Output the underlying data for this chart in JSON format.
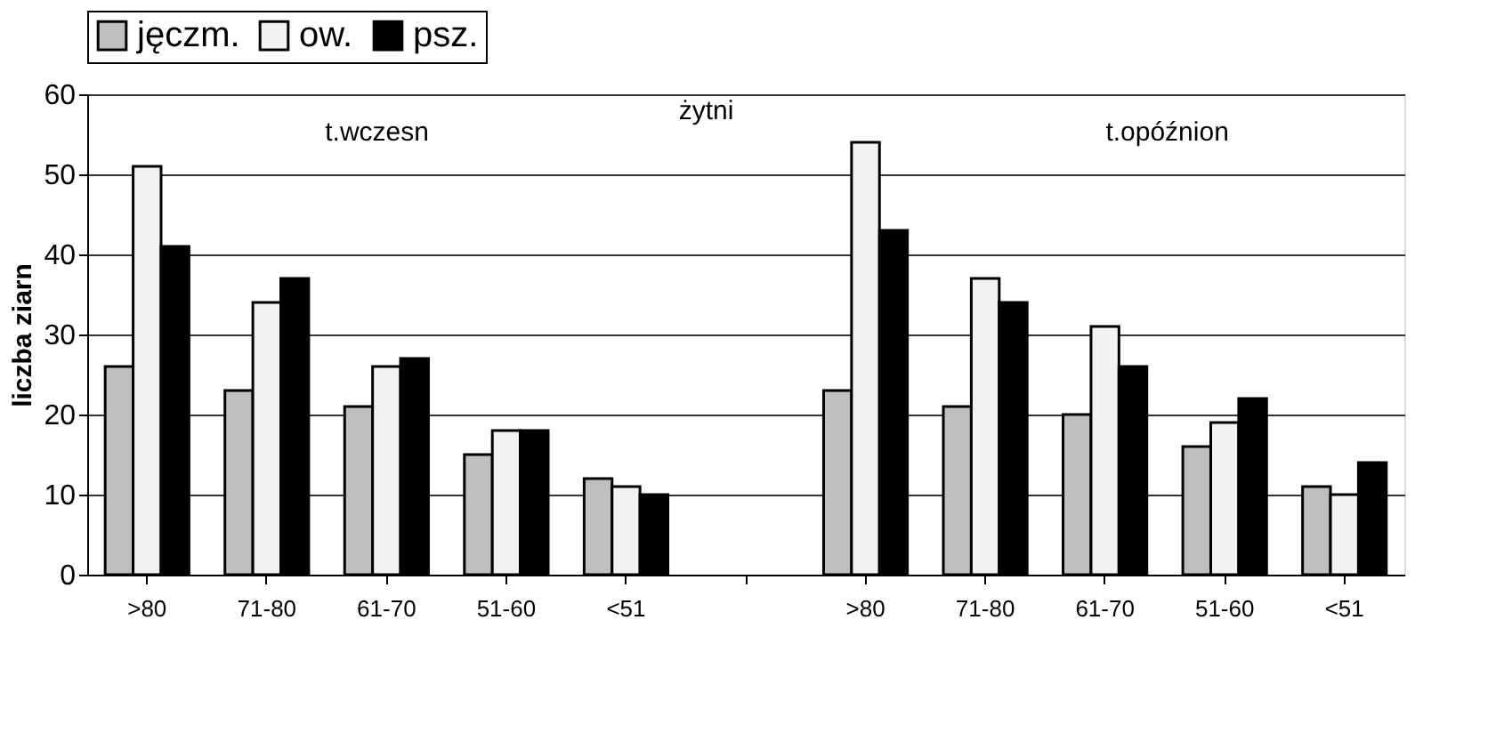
{
  "chart_data": {
    "type": "bar",
    "ylabel": "liczba ziarn",
    "categories": [
      ">80",
      "71-80",
      "61-70",
      "51-60",
      "<51",
      null,
      ">80",
      "71-80",
      "61-70",
      "51-60",
      "<51"
    ],
    "series": [
      {
        "name": "jęczm.",
        "color": "#bfbfbf",
        "values": [
          26,
          23,
          21,
          15,
          12,
          null,
          23,
          21,
          20,
          16,
          11
        ]
      },
      {
        "name": "ow.",
        "color": "#f2f2f2",
        "values": [
          51,
          34,
          26,
          18,
          11,
          null,
          54,
          37,
          31,
          19,
          10
        ]
      },
      {
        "name": "psz.",
        "color": "#000000",
        "values": [
          41,
          37,
          27,
          18,
          10,
          null,
          43,
          34,
          26,
          22,
          14
        ]
      }
    ],
    "annotations": [
      "t.wczesn",
      "żytni",
      "t.opóźnion"
    ],
    "ylim": [
      0,
      60
    ],
    "yticks": [
      0,
      10,
      20,
      30,
      40,
      50,
      60
    ],
    "grid": "y",
    "legend": "top"
  }
}
